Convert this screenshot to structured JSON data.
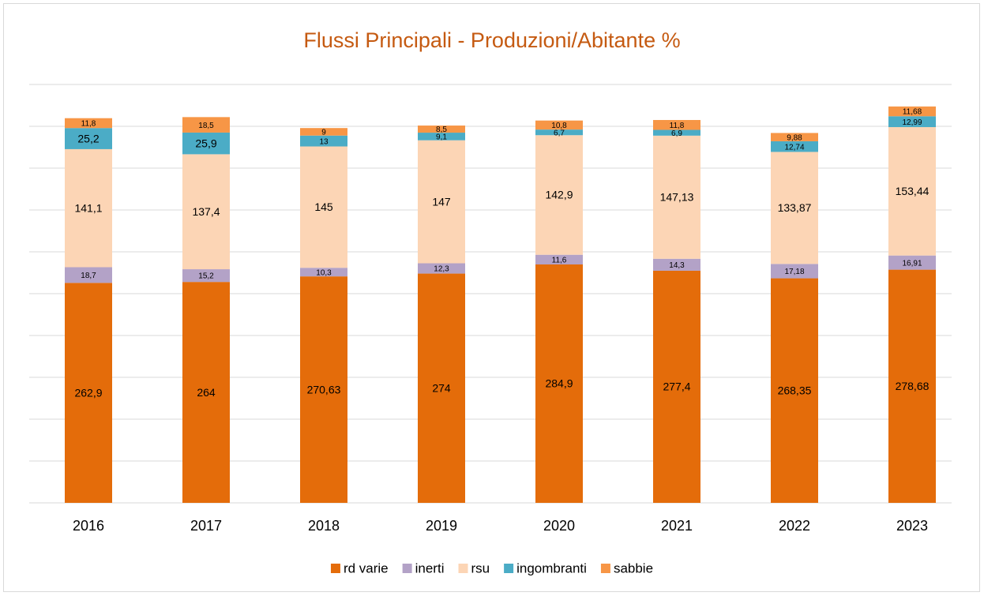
{
  "chart_data": {
    "type": "stacked_bar",
    "title": "Flussi Principali - Produzioni/Abitante %",
    "categories": [
      "2016",
      "2017",
      "2018",
      "2019",
      "2020",
      "2021",
      "2022",
      "2023"
    ],
    "series": [
      {
        "name": "rd varie",
        "color": "#e46c0a",
        "values": [
          262.9,
          264,
          270.63,
          274,
          284.9,
          277.4,
          268.35,
          278.68
        ],
        "value_labels": [
          "262,9",
          "264",
          "270,63",
          "274",
          "284,9",
          "277,4",
          "268,35",
          "278,68"
        ]
      },
      {
        "name": "inerti",
        "color": "#b3a2c7",
        "values": [
          18.7,
          15.2,
          10.3,
          12.3,
          11.6,
          14.3,
          17.18,
          16.91
        ],
        "value_labels": [
          "18,7",
          "15,2",
          "10,3",
          "12,3",
          "11,6",
          "14,3",
          "17,18",
          "16,91"
        ]
      },
      {
        "name": "rsu",
        "color": "#fcd5b5",
        "values": [
          141.1,
          137.4,
          145,
          147,
          142.9,
          147.13,
          133.87,
          153.44
        ],
        "value_labels": [
          "141,1",
          "137,4",
          "145",
          "147",
          "142,9",
          "147,13",
          "133,87",
          "153,44"
        ]
      },
      {
        "name": "ingombranti",
        "color": "#4bacc6",
        "values": [
          25.2,
          25.9,
          13,
          9.1,
          6.7,
          6.9,
          12.74,
          12.99
        ],
        "value_labels": [
          "25,2",
          "25,9",
          "13",
          "9,1",
          "6,7",
          "6,9",
          "12,74",
          "12,99"
        ]
      },
      {
        "name": "sabbie",
        "color": "#f79646",
        "values": [
          11.8,
          18.5,
          9,
          8.5,
          10.8,
          11.8,
          9.88,
          11.68
        ],
        "value_labels": [
          "11,8",
          "18,5",
          "9",
          "8,5",
          "10,8",
          "11,8",
          "9,88",
          "11,68"
        ]
      }
    ],
    "ylim": [
      0,
      500
    ],
    "yticks": [
      0,
      50,
      100,
      150,
      200,
      250,
      300,
      350,
      400,
      450,
      500
    ],
    "grid": true,
    "legend": "bottom"
  }
}
